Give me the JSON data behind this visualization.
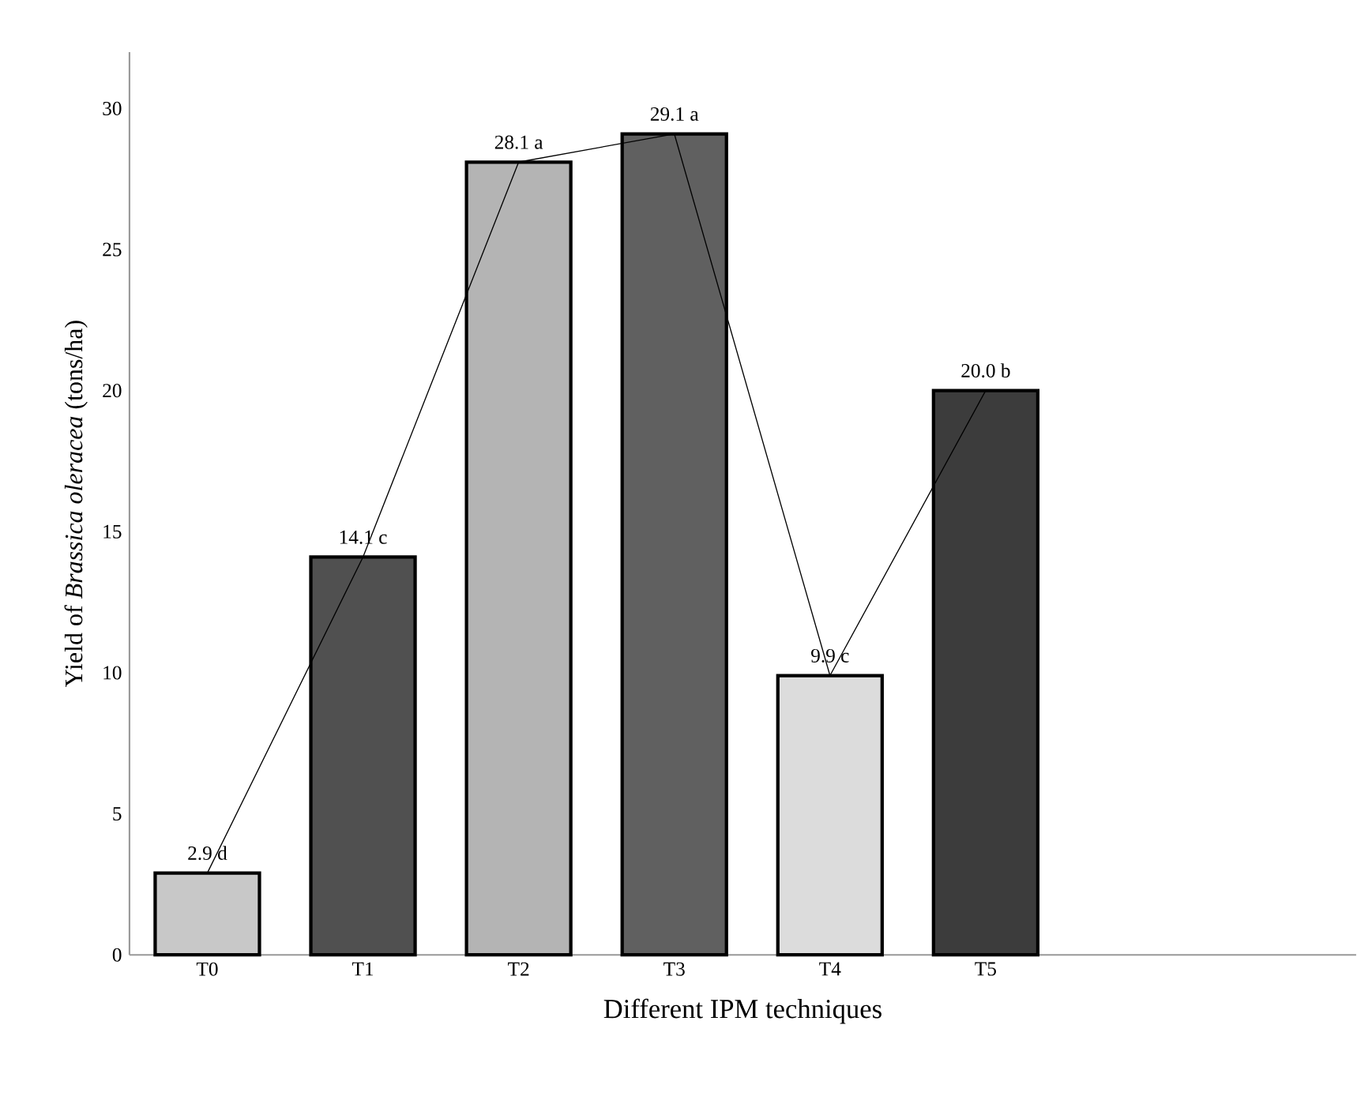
{
  "chart_data": {
    "type": "bar",
    "xlabel": "Different IPM techniques",
    "ylabel": "Yield of *Brassica oleracea*  (tons/ha)",
    "categories": [
      "T0",
      "T1",
      "T2",
      "T3",
      "T4",
      "T5"
    ],
    "series": [
      {
        "color": "#000000",
        "colors": [
          "#c8c8c8",
          "#505050",
          "#b4b4b4",
          "#606060",
          "#dcdcdc",
          "#3c3c3c"
        ],
        "values": [
          2.9,
          14.1,
          28.1,
          29.1,
          9.9,
          20.0
        ],
        "value_labels": [
          "2.9 d",
          "14.1 c",
          "28.1 a",
          "29.1 a",
          "9.9 c",
          "20.0 b"
        ]
      },
      {
        "type": "line",
        "color": "#000000",
        "values": [
          2.9,
          14.1,
          28.1,
          29.1,
          9.9,
          20.0
        ]
      }
    ],
    "ylim": [
      0,
      32
    ],
    "yticks": [
      0,
      5,
      10,
      15,
      20,
      25,
      30
    ],
    "grid": false,
    "marker": "none",
    "line_style": "solid"
  }
}
